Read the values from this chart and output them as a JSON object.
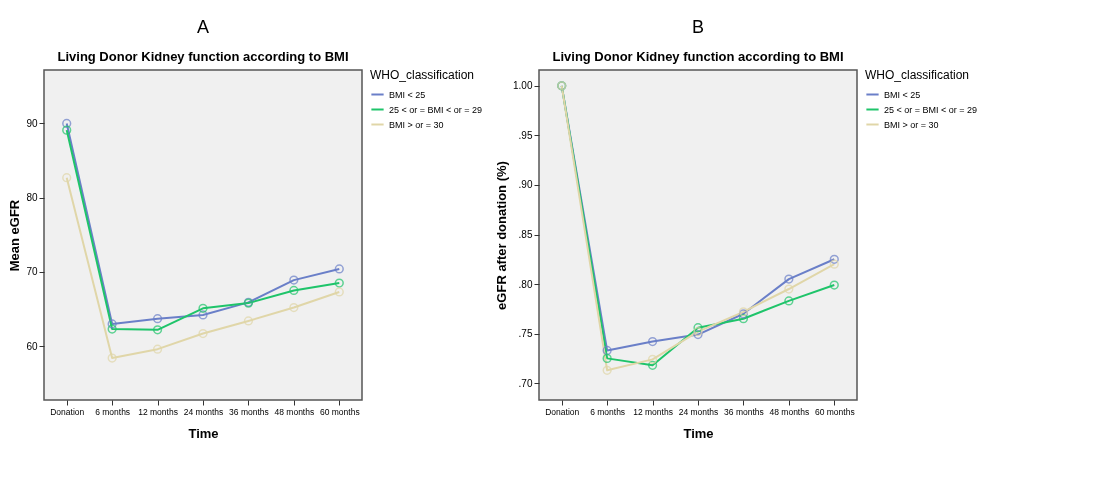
{
  "chart_data": [
    {
      "type": "line",
      "title": "Living Donor Kidney function according to BMI",
      "annotations": [
        "A"
      ],
      "xlabel": "Time",
      "ylabel": "Mean eGFR",
      "legend_title": "WHO_classification",
      "legend": "top right",
      "marker": "circle",
      "grid": false,
      "categories": [
        "Donation",
        "6 months",
        "12 months",
        "24 months",
        "36 months",
        "48 months",
        "60 months"
      ],
      "ylim": [
        52.75,
        97.2
      ],
      "yticks": [
        60,
        70,
        80,
        90
      ],
      "series": [
        {
          "name": "BMI < 25",
          "color": "#6a7fc8",
          "values": [
            90.0,
            63.0,
            63.7,
            64.2,
            65.9,
            68.9,
            70.4
          ]
        },
        {
          "name": "25 < or =  BMI < or = 29",
          "color": "#1fc46a",
          "values": [
            89.1,
            62.3,
            62.2,
            65.1,
            65.8,
            67.5,
            68.5
          ]
        },
        {
          "name": "BMI > or = 30",
          "color": "#e0d6a8",
          "values": [
            82.7,
            58.4,
            59.6,
            61.7,
            63.4,
            65.2,
            67.3
          ]
        }
      ]
    },
    {
      "type": "line",
      "title": "Living Donor Kidney function according to BMI",
      "annotations": [
        "B"
      ],
      "xlabel": "Time",
      "ylabel": "eGFR after donation (%)",
      "legend_title": "WHO_classification",
      "legend": "top right",
      "marker": "circle",
      "grid": false,
      "categories": [
        "Donation",
        "6 months",
        "12 months",
        "24 months",
        "36 months",
        "48 months",
        "60 months"
      ],
      "ylim": [
        0.683,
        1.016
      ],
      "yticks": [
        {
          "value": 0.7,
          "label": ".70"
        },
        {
          "value": 0.75,
          "label": ".75"
        },
        {
          "value": 0.8,
          "label": ".80"
        },
        {
          "value": 0.85,
          "label": ".85"
        },
        {
          "value": 0.9,
          "label": ".90"
        },
        {
          "value": 0.95,
          "label": ".95"
        },
        {
          "value": 1.0,
          "label": "1.00"
        }
      ],
      "series": [
        {
          "name": "BMI < 25",
          "color": "#6a7fc8",
          "values": [
            1.0,
            0.733,
            0.742,
            0.749,
            0.77,
            0.805,
            0.825
          ]
        },
        {
          "name": "25 < or =  BMI < or = 29",
          "color": "#1fc46a",
          "values": [
            1.0,
            0.725,
            0.718,
            0.756,
            0.765,
            0.783,
            0.799
          ]
        },
        {
          "name": "BMI > or = 30",
          "color": "#e0d6a8",
          "values": [
            1.0,
            0.713,
            0.724,
            0.752,
            0.772,
            0.795,
            0.82
          ]
        }
      ]
    }
  ]
}
